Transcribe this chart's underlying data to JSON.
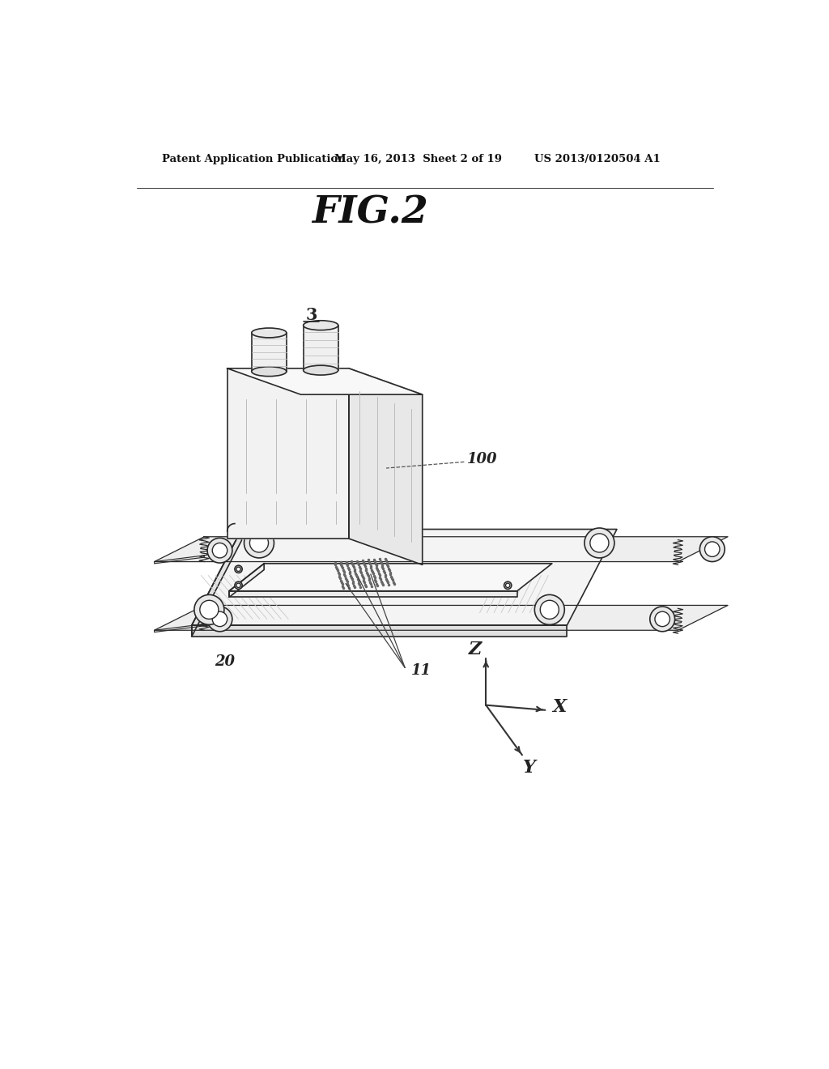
{
  "title": "FIG.2",
  "header_left": "Patent Application Publication",
  "header_mid": "May 16, 2013  Sheet 2 of 19",
  "header_right": "US 2013/0120504 A1",
  "label_3": "3",
  "label_100": "100",
  "label_20": "20",
  "label_11": "11",
  "bg_color": "#ffffff",
  "lc": "#2a2a2a",
  "face_color_front": "#f2f2f2",
  "face_color_side": "#e8e8e8",
  "face_color_top": "#f8f8f8",
  "face_color_plate": "#eeeeee",
  "shade_color": "#cccccc",
  "dot_color": "#555555"
}
